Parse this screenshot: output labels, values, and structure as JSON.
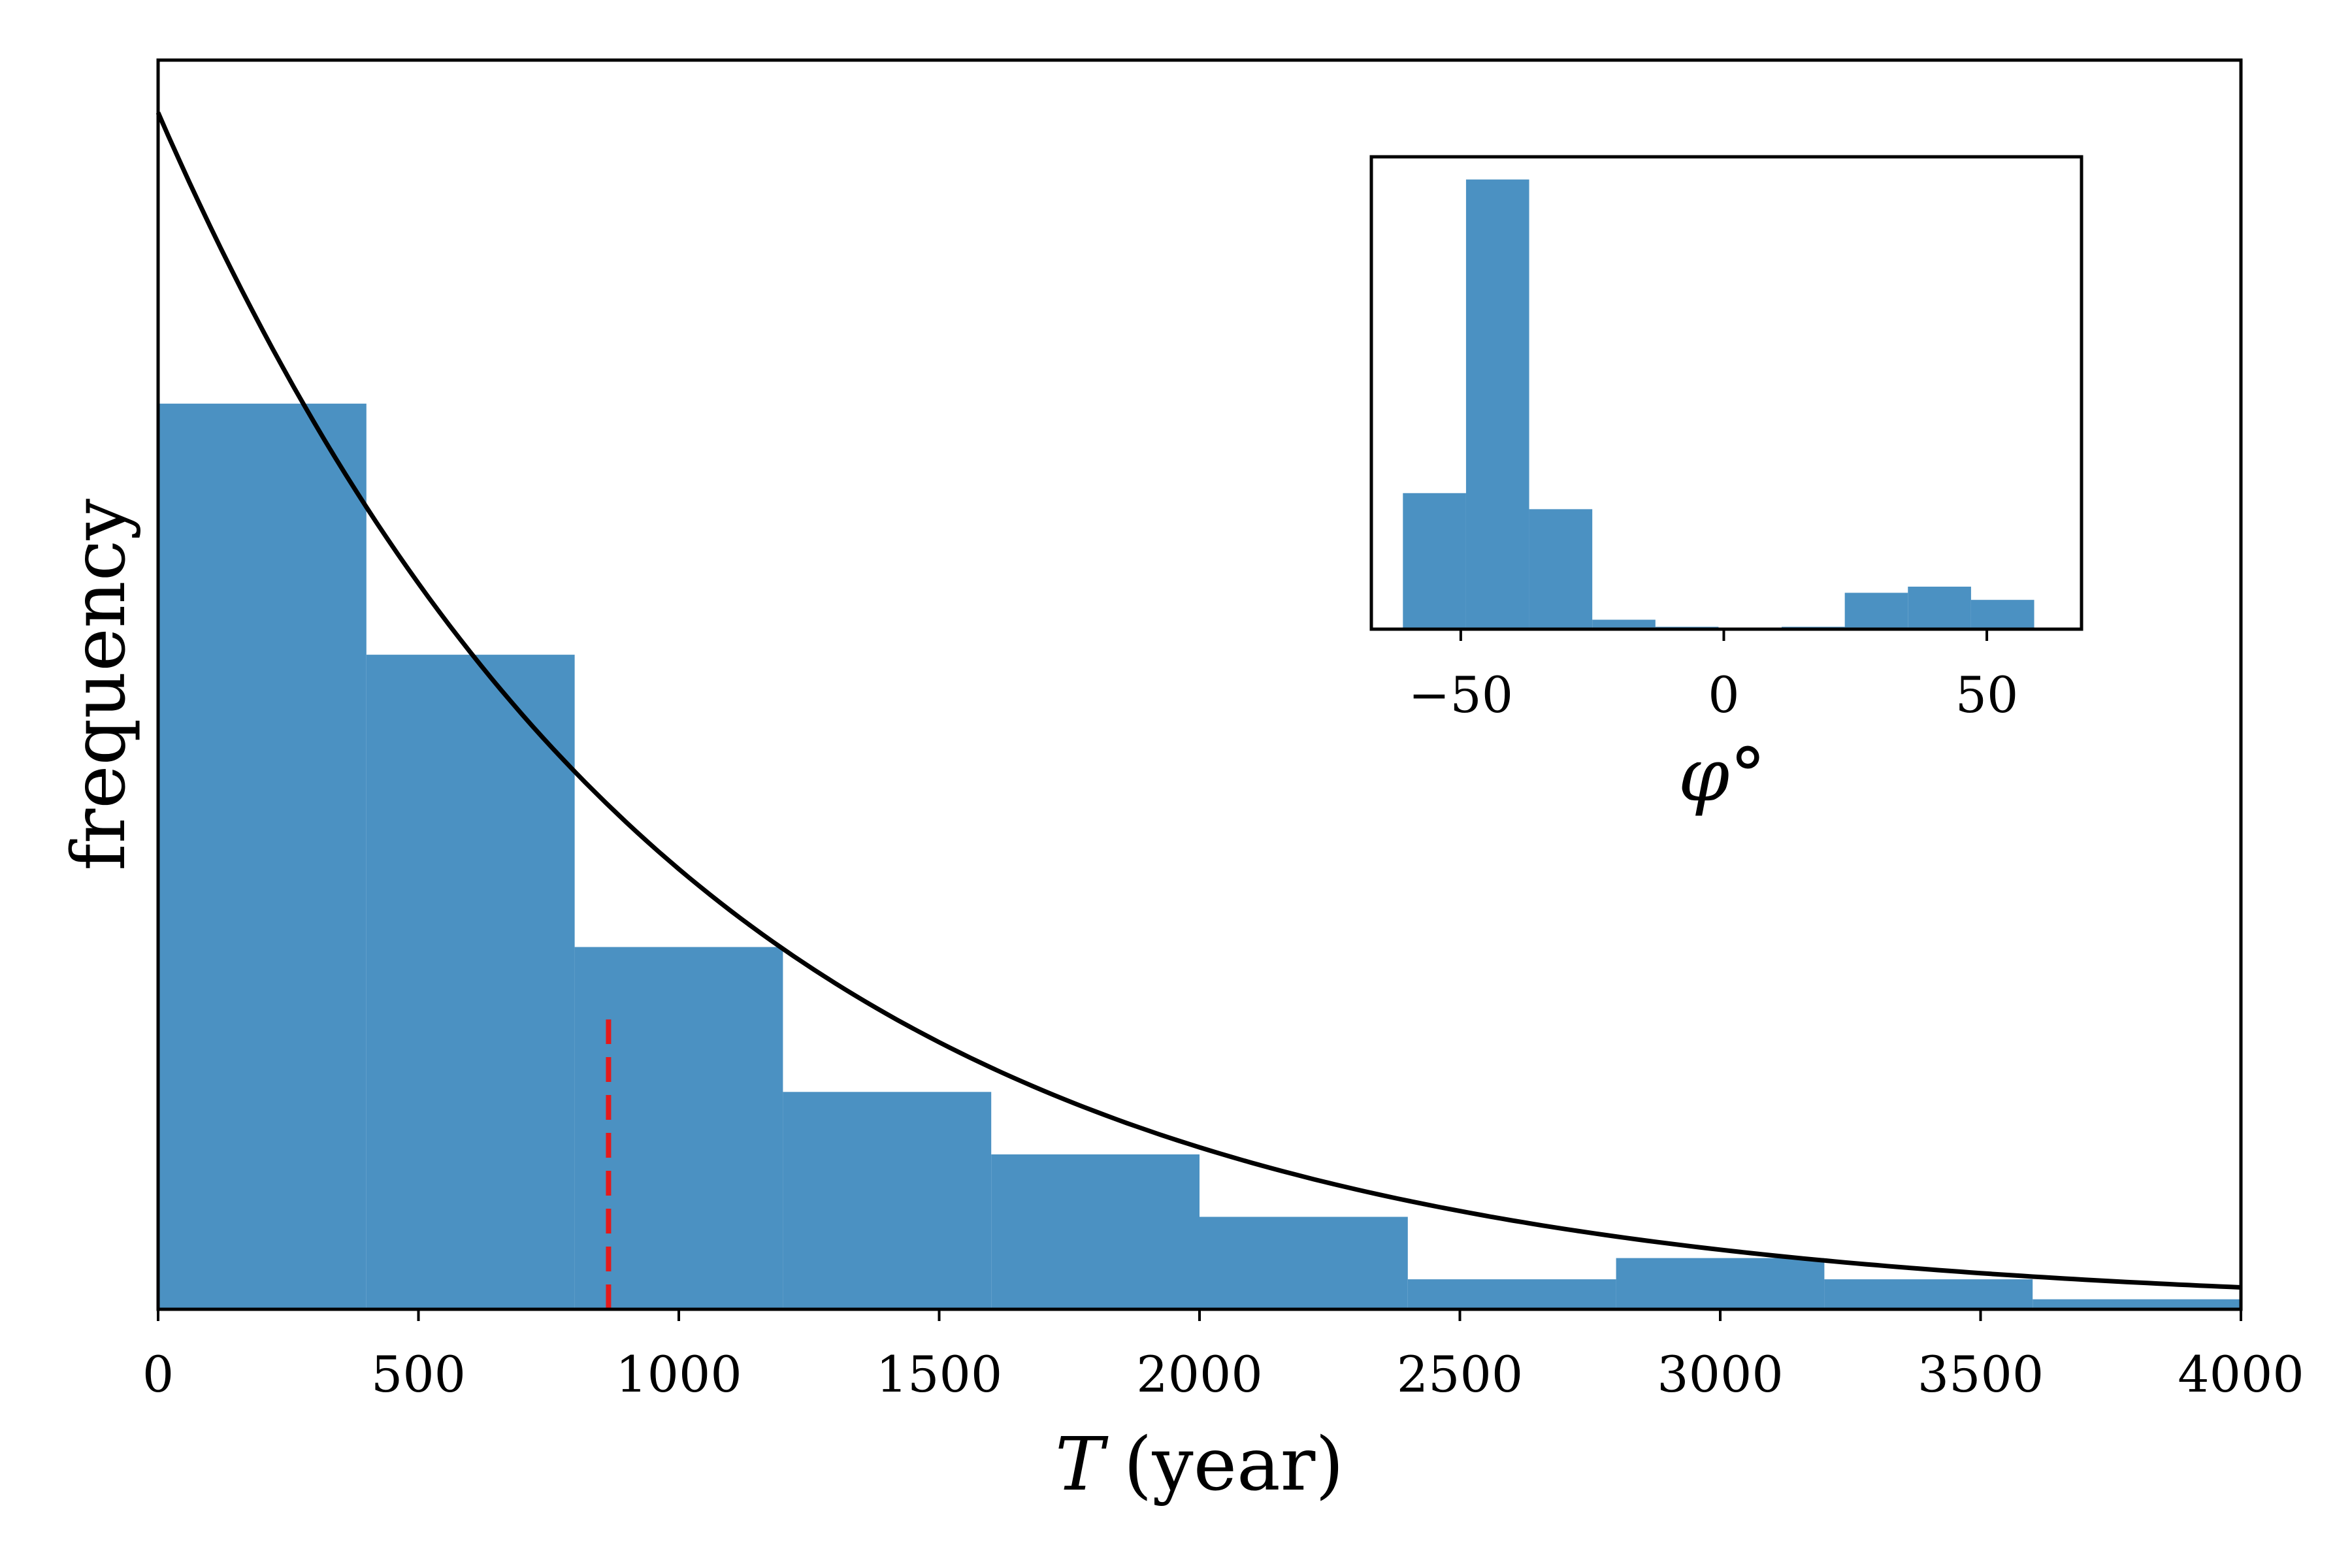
{
  "chart_data": [
    {
      "type": "bar",
      "title": "",
      "xlabel": "T (year)",
      "xlabel_var": "T",
      "xlabel_unit": "(year)",
      "ylabel": "frequency",
      "xlim": [
        0,
        4000
      ],
      "ylim": [
        0,
        1.0
      ],
      "xticks": [
        "0",
        "500",
        "1000",
        "1500",
        "2000",
        "2500",
        "3000",
        "3500",
        "4000"
      ],
      "yticks_visible": false,
      "bin_edges": [
        0,
        400,
        800,
        1200,
        1600,
        2000,
        2400,
        2800,
        3200,
        3600,
        4000
      ],
      "values": [
        0.725,
        0.524,
        0.29,
        0.174,
        0.124,
        0.074,
        0.024,
        0.041,
        0.024,
        0.008
      ],
      "bar_color": "#4b91c2",
      "fit_curve": {
        "type": "exponential",
        "y0": 0.958,
        "decay_scale_years": 1000,
        "color": "#000000"
      },
      "marker_line": {
        "x": 865,
        "y_top": 0.232,
        "style": "dashed",
        "color": "#e31a1c"
      },
      "grid": false
    },
    {
      "type": "bar",
      "title": "",
      "xlabel": "φ°",
      "ylabel": "",
      "xlim": [
        -67,
        68
      ],
      "ylim": [
        0,
        1.0
      ],
      "xticks": [
        "−50",
        "0",
        "50"
      ],
      "yticks_visible": false,
      "bin_edges": [
        -61,
        -49,
        -37,
        -25,
        -13,
        -1,
        11,
        23,
        35,
        47,
        59
      ],
      "values": [
        0.288,
        0.952,
        0.254,
        0.02,
        0.005,
        0.0,
        0.005,
        0.077,
        0.09,
        0.062
      ],
      "bar_color": "#4b91c2",
      "placement": "top-right",
      "grid": false
    }
  ]
}
